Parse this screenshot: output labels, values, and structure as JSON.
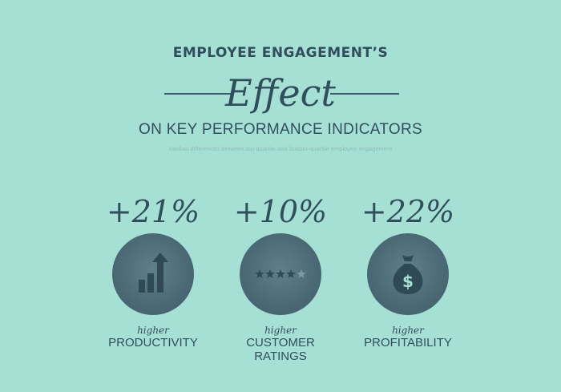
{
  "header": {
    "title_top": "EMPLOYEE ENGAGEMENT’S",
    "title_script": "Effect",
    "subtitle": "ON KEY PERFORMANCE INDICATORS",
    "note": "Median differences between top-quartile and bottom-quartile employee engagement"
  },
  "kpis": [
    {
      "value": "+21%",
      "qualifier": "higher",
      "label": "PRODUCTIVITY",
      "icon": "bar-chart-arrow-icon"
    },
    {
      "value": "+10%",
      "qualifier": "higher",
      "label": "CUSTOMER\nRATINGS",
      "icon": "star-rating-icon",
      "rating": 4,
      "rating_max": 5
    },
    {
      "value": "+22%",
      "qualifier": "higher",
      "label": "PROFITABILITY",
      "icon": "money-bag-icon",
      "icon_text": "$"
    }
  ],
  "colors": {
    "background": "#a6e0d5",
    "text": "#2f4f5a",
    "circle": "#4a6975",
    "icon": "#2f4a55"
  }
}
